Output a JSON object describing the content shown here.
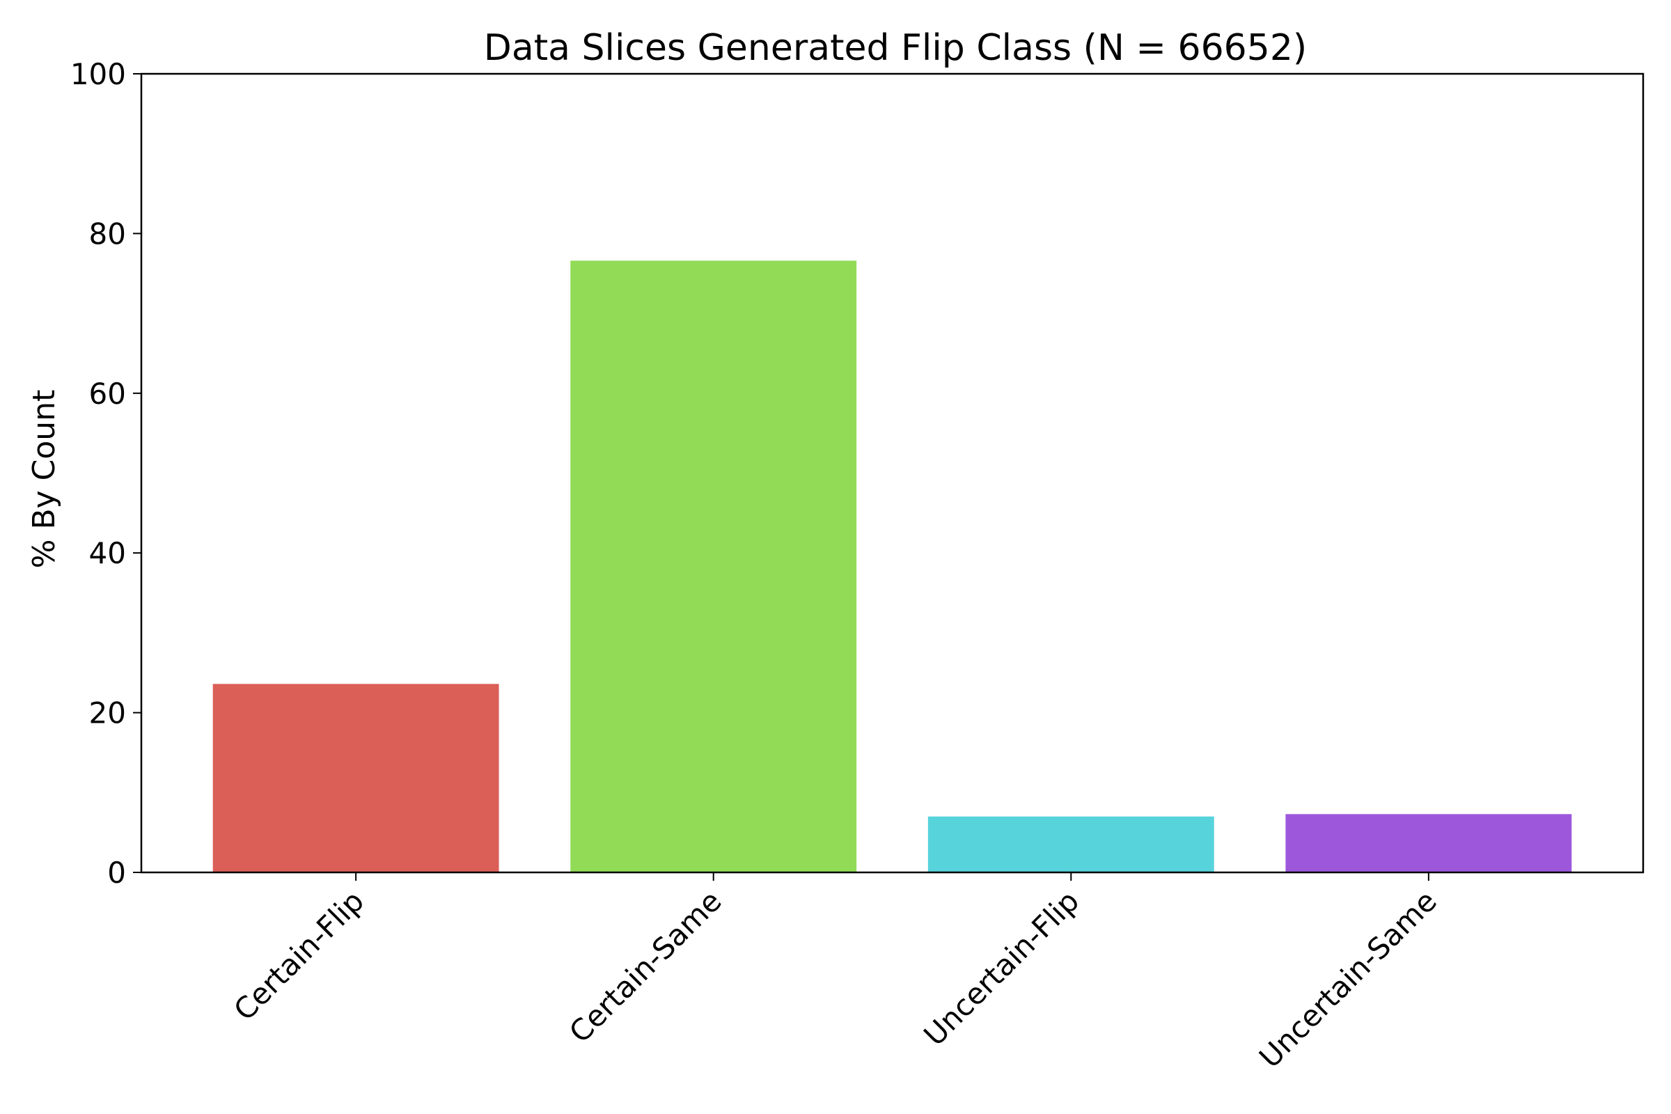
{
  "chart_data": {
    "type": "bar",
    "title": "Data Slices Generated Flip Class (N = 66652)",
    "xlabel": "",
    "ylabel": "% By Count",
    "categories": [
      "Certain-Flip",
      "Certain-Same",
      "Uncertain-Flip",
      "Uncertain-Same"
    ],
    "values": [
      23.6,
      76.6,
      7.0,
      7.3
    ],
    "colors": [
      "#db5f57",
      "#91db57",
      "#57d3db",
      "#9d57db"
    ],
    "ylim": [
      0,
      100
    ],
    "yticks": [
      0,
      20,
      40,
      60,
      80,
      100
    ],
    "grid": false,
    "legend": "none"
  }
}
